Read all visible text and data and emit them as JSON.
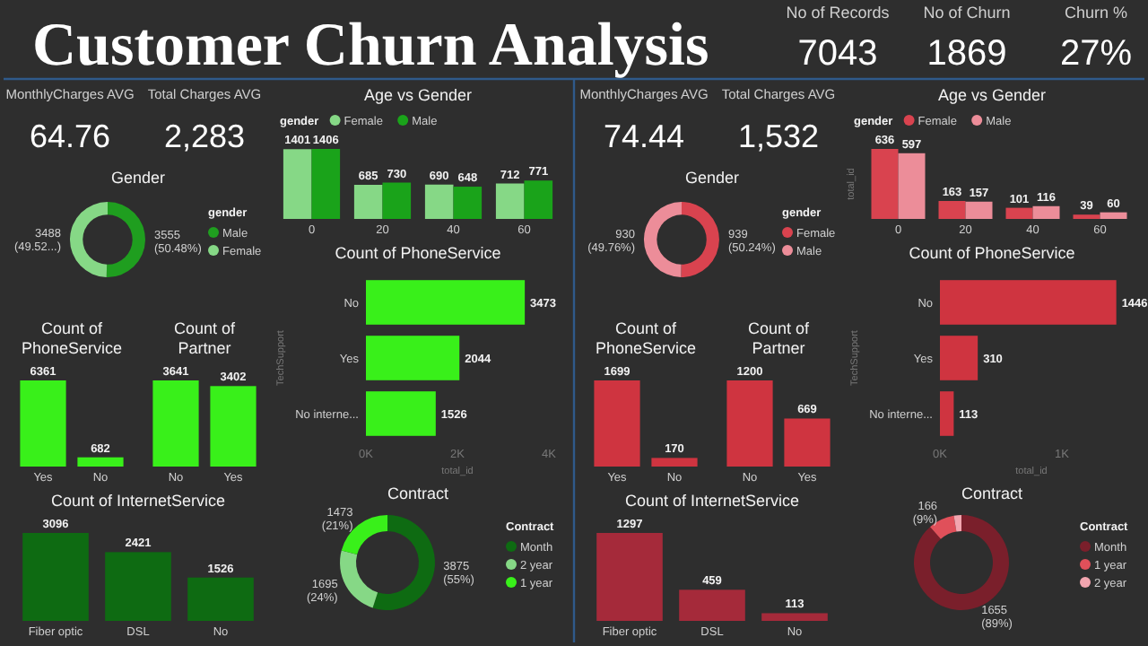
{
  "chart_data": [
    {
      "type": "other",
      "title": "Customer Churn Analysis",
      "annotations": [
        "No of Records",
        "7043",
        "No of Churn",
        "1869",
        "Churn %",
        "27%"
      ]
    },
    {
      "type": "other",
      "annotations": [
        "MonthlyCharges AVG",
        "64.76",
        "Total Charges AVG",
        "2,283"
      ]
    },
    {
      "type": "donut",
      "title": "Gender",
      "categories": [
        "Male",
        "Female"
      ],
      "values": [
        3555,
        3488
      ],
      "colors": [
        "#1f9e1f",
        "#86d886"
      ],
      "value_labels": [
        "3555 (50.48%)",
        "3488 (49.52...)"
      ],
      "legend": "right",
      "legend_title": "gender"
    },
    {
      "type": "bar",
      "title": "Age vs Gender",
      "categories": [
        "0",
        "20",
        "40",
        "60"
      ],
      "legend": "top left",
      "legend_title": "gender",
      "data_labels": true,
      "series": [
        {
          "name": "Female",
          "color": "#86d886",
          "values": [
            1401,
            685,
            690,
            712
          ]
        },
        {
          "name": "Male",
          "color": "#1aa31a",
          "values": [
            1406,
            730,
            648,
            771
          ]
        }
      ]
    },
    {
      "type": "bar",
      "title": "Count of PhoneService",
      "categories": [
        "Yes",
        "No"
      ],
      "values": [
        6361,
        682
      ],
      "color": "#39f01a",
      "data_labels": true
    },
    {
      "type": "bar",
      "title": "Count of Partner",
      "categories": [
        "No",
        "Yes"
      ],
      "values": [
        3641,
        3402
      ],
      "color": "#39f01a",
      "data_labels": true
    },
    {
      "type": "bar",
      "orientation": "horizontal",
      "title": "Count of PhoneService",
      "ylabel": "TechSupport",
      "xlabel": "total_id",
      "categories": [
        "No",
        "Yes",
        "No interne..."
      ],
      "values": [
        3473,
        2044,
        1526
      ],
      "color": "#39f01a",
      "data_labels": true,
      "xlim": [
        0,
        4000
      ],
      "xticks": [
        {
          "value": 0,
          "label": "0K"
        },
        {
          "value": 2000,
          "label": "2K"
        },
        {
          "value": 4000,
          "label": "4K"
        }
      ]
    },
    {
      "type": "bar",
      "title": "Count of InternetService",
      "categories": [
        "Fiber optic",
        "DSL",
        "No"
      ],
      "values": [
        3096,
        2421,
        1526
      ],
      "color": "#0e6b12",
      "data_labels": true
    },
    {
      "type": "donut",
      "title": "Contract",
      "categories": [
        "Month",
        "2 year",
        "1 year"
      ],
      "values": [
        3875,
        1695,
        1473
      ],
      "colors": [
        "#0e6b12",
        "#86d886",
        "#39f01a"
      ],
      "value_labels": [
        "3875 (55%)",
        "1695 (24%)",
        "1473 (21%)"
      ],
      "legend": "right",
      "legend_title": "Contract"
    },
    {
      "type": "other",
      "annotations": [
        "MonthlyCharges AVG",
        "74.44",
        "Total Charges AVG",
        "1,532"
      ]
    },
    {
      "type": "donut",
      "title": "Gender",
      "categories": [
        "Female",
        "Male"
      ],
      "values": [
        939,
        930
      ],
      "colors": [
        "#d9434f",
        "#ec8d99"
      ],
      "value_labels": [
        "939 (50.24%)",
        "930 (49.76%)"
      ],
      "legend": "right",
      "legend_title": "gender"
    },
    {
      "type": "bar",
      "title": "Age vs Gender",
      "categories": [
        "0",
        "20",
        "40",
        "60"
      ],
      "ylabel": "total_id",
      "legend": "top left",
      "legend_title": "gender",
      "data_labels": true,
      "series": [
        {
          "name": "Female",
          "color": "#d9434f",
          "values": [
            636,
            163,
            101,
            39
          ]
        },
        {
          "name": "Male",
          "color": "#ec8d99",
          "values": [
            597,
            157,
            116,
            60
          ]
        }
      ]
    },
    {
      "type": "bar",
      "title": "Count of PhoneService",
      "categories": [
        "Yes",
        "No"
      ],
      "values": [
        1699,
        170
      ],
      "color": "#cf3440",
      "data_labels": true
    },
    {
      "type": "bar",
      "title": "Count of Partner",
      "categories": [
        "No",
        "Yes"
      ],
      "values": [
        1200,
        669
      ],
      "color": "#cf3440",
      "data_labels": true
    },
    {
      "type": "bar",
      "orientation": "horizontal",
      "title": "Count of PhoneService",
      "ylabel": "TechSupport",
      "xlabel": "total_id",
      "categories": [
        "No",
        "Yes",
        "No interne..."
      ],
      "values": [
        1446,
        310,
        113
      ],
      "color": "#cf3440",
      "data_labels": true,
      "xlim": [
        0,
        1500
      ],
      "xticks": [
        {
          "value": 0,
          "label": "0K"
        },
        {
          "value": 1000,
          "label": "1K"
        }
      ]
    },
    {
      "type": "bar",
      "title": "Count of InternetService",
      "categories": [
        "Fiber optic",
        "DSL",
        "No"
      ],
      "values": [
        1297,
        459,
        113
      ],
      "color": "#a52a3a",
      "data_labels": true
    },
    {
      "type": "donut",
      "title": "Contract",
      "categories": [
        "Month",
        "1 year",
        "2 year"
      ],
      "values": [
        1655,
        166,
        48
      ],
      "colors": [
        "#7a1f2b",
        "#e0505a",
        "#f2a5af"
      ],
      "value_labels": [
        "1655 (89%)",
        "166 (9%)",
        null
      ],
      "legend": "right",
      "legend_title": "Contract"
    }
  ]
}
